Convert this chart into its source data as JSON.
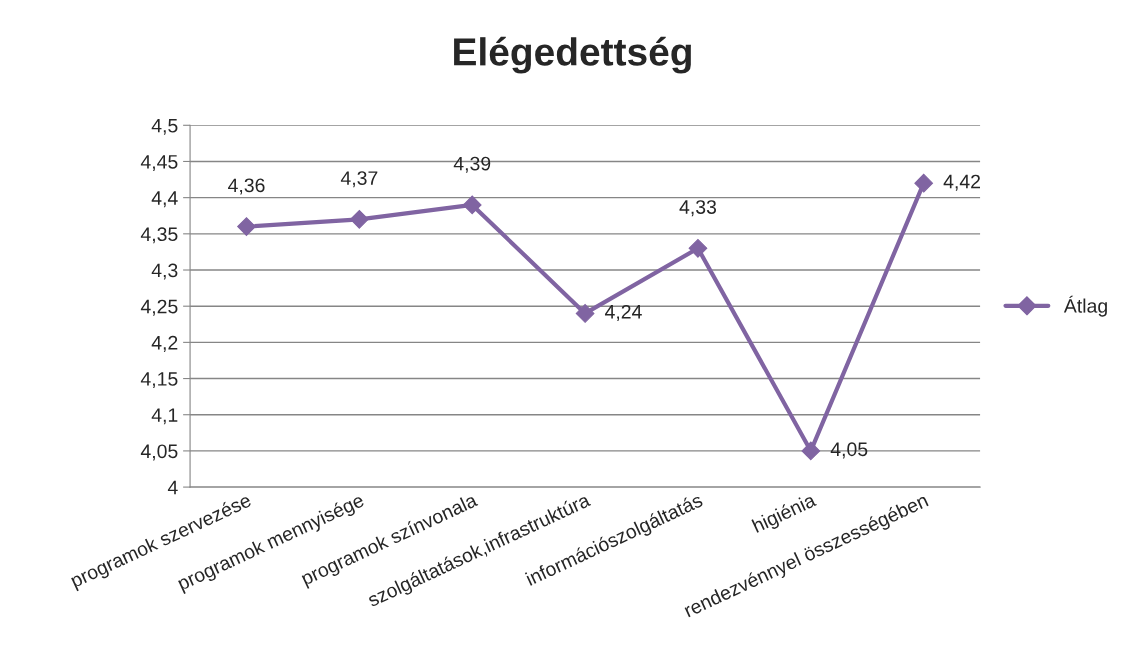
{
  "chart_data": {
    "type": "line",
    "title": "Elégedettség",
    "categories": [
      "programok szervezése",
      "programok mennyisége",
      "programok színvonala",
      "szolgáltatások,infrastruktúra",
      "információszolgáltatás",
      "higiénia",
      "rendezvénnyel összességében"
    ],
    "series": [
      {
        "name": "Átlag",
        "color": "#8064a2",
        "values": [
          4.36,
          4.37,
          4.39,
          4.24,
          4.33,
          4.05,
          4.42
        ],
        "value_labels": [
          "4,36",
          "4,37",
          "4,39",
          "4,24",
          "4,33",
          "4,05",
          "4,42"
        ]
      }
    ],
    "ylim": [
      4,
      4.5
    ],
    "yticks": [
      {
        "value": 4,
        "label": "4"
      },
      {
        "value": 4.05,
        "label": "4,05"
      },
      {
        "value": 4.1,
        "label": "4,1"
      },
      {
        "value": 4.15,
        "label": "4,15"
      },
      {
        "value": 4.2,
        "label": "4,2"
      },
      {
        "value": 4.25,
        "label": "4,25"
      },
      {
        "value": 4.3,
        "label": "4,3"
      },
      {
        "value": 4.35,
        "label": "4,35"
      },
      {
        "value": 4.4,
        "label": "4,4"
      },
      {
        "value": 4.45,
        "label": "4,45"
      },
      {
        "value": 4.5,
        "label": "4,5"
      }
    ],
    "grid": "y",
    "legend": "right",
    "marker": "diamond",
    "line_style": "solid"
  }
}
